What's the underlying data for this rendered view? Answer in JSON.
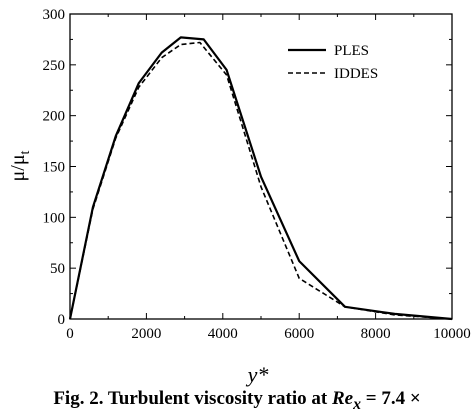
{
  "chart_data": {
    "type": "line",
    "xlabel": "y*",
    "ylabel": "μ/μ",
    "ylabel_subscript": "t",
    "xlim": [
      0,
      10000
    ],
    "ylim": [
      0,
      300
    ],
    "x_ticks": [
      "0",
      "2000",
      "4000",
      "6000",
      "8000",
      "10000"
    ],
    "y_ticks": [
      "0",
      "50",
      "100",
      "150",
      "200",
      "250",
      "300"
    ],
    "legend_position": "top-right",
    "grid": false,
    "series": [
      {
        "name": "PLES",
        "style": "solid",
        "color": "#000000",
        "x": [
          0,
          600,
          1200,
          1800,
          2400,
          2900,
          3500,
          4100,
          5000,
          6000,
          7200,
          8500,
          10000
        ],
        "y": [
          0,
          110,
          180,
          232,
          262,
          277,
          275,
          245,
          140,
          57,
          12,
          5,
          0
        ]
      },
      {
        "name": "IDDES",
        "style": "dashed",
        "color": "#000000",
        "x": [
          0,
          600,
          1200,
          1800,
          2400,
          2900,
          3400,
          4100,
          5000,
          6000,
          7200,
          8500,
          10000
        ],
        "y": [
          0,
          108,
          178,
          228,
          257,
          270,
          272,
          240,
          130,
          40,
          12,
          4,
          0
        ]
      }
    ]
  },
  "caption": {
    "prefix": "Fig. 2. Turbulent viscosity ratio at ",
    "re": "Re",
    "re_sub": "x",
    "suffix": " = 7.4 ×"
  }
}
